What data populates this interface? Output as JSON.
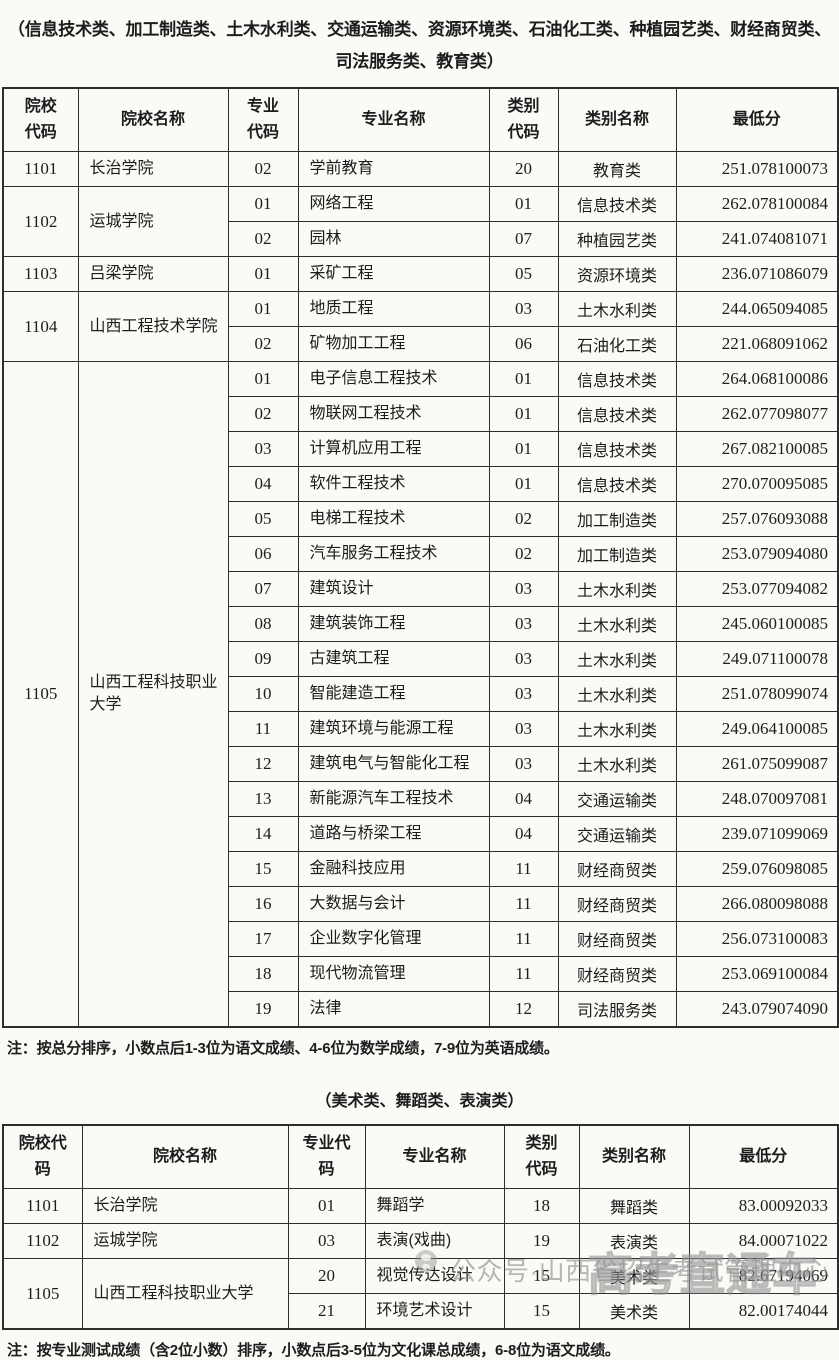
{
  "colors": {
    "page_background": "#fbfaf7",
    "text": "#1c1c1c",
    "table_border": "#2e2e2e",
    "watermark_gray": "#8d8d8d"
  },
  "section1": {
    "title_line1": "（信息技术类、加工制造类、土木水利类、交通运输类、资源环境类、石油化工类、种植园艺类、财经商贸类、",
    "title_line2": "司法服务类、教育类）",
    "table": {
      "headers": [
        "院校代码",
        "院校名称",
        "专业代码",
        "专业名称",
        "类别代码",
        "类别名称",
        "最低分"
      ],
      "groups": [
        {
          "code": "1101",
          "name": "长治学院",
          "majors": [
            {
              "major_code": "02",
              "major_name": "学前教育",
              "category_code": "20",
              "category_name": "教育类",
              "min_score": "251.078100073"
            }
          ]
        },
        {
          "code": "1102",
          "name": "运城学院",
          "majors": [
            {
              "major_code": "01",
              "major_name": "网络工程",
              "category_code": "01",
              "category_name": "信息技术类",
              "min_score": "262.078100084"
            },
            {
              "major_code": "02",
              "major_name": "园林",
              "category_code": "07",
              "category_name": "种植园艺类",
              "min_score": "241.074081071"
            }
          ]
        },
        {
          "code": "1103",
          "name": "吕梁学院",
          "majors": [
            {
              "major_code": "01",
              "major_name": "采矿工程",
              "category_code": "05",
              "category_name": "资源环境类",
              "min_score": "236.071086079"
            }
          ]
        },
        {
          "code": "1104",
          "name": "山西工程技术学院",
          "majors": [
            {
              "major_code": "01",
              "major_name": "地质工程",
              "category_code": "03",
              "category_name": "土木水利类",
              "min_score": "244.065094085"
            },
            {
              "major_code": "02",
              "major_name": "矿物加工工程",
              "category_code": "06",
              "category_name": "石油化工类",
              "min_score": "221.068091062"
            }
          ]
        },
        {
          "code": "1105",
          "name": "山西工程科技职业大学",
          "majors": [
            {
              "major_code": "01",
              "major_name": "电子信息工程技术",
              "category_code": "01",
              "category_name": "信息技术类",
              "min_score": "264.068100086"
            },
            {
              "major_code": "02",
              "major_name": "物联网工程技术",
              "category_code": "01",
              "category_name": "信息技术类",
              "min_score": "262.077098077"
            },
            {
              "major_code": "03",
              "major_name": "计算机应用工程",
              "category_code": "01",
              "category_name": "信息技术类",
              "min_score": "267.082100085"
            },
            {
              "major_code": "04",
              "major_name": "软件工程技术",
              "category_code": "01",
              "category_name": "信息技术类",
              "min_score": "270.070095085"
            },
            {
              "major_code": "05",
              "major_name": "电梯工程技术",
              "category_code": "02",
              "category_name": "加工制造类",
              "min_score": "257.076093088"
            },
            {
              "major_code": "06",
              "major_name": "汽车服务工程技术",
              "category_code": "02",
              "category_name": "加工制造类",
              "min_score": "253.079094080"
            },
            {
              "major_code": "07",
              "major_name": "建筑设计",
              "category_code": "03",
              "category_name": "土木水利类",
              "min_score": "253.077094082"
            },
            {
              "major_code": "08",
              "major_name": "建筑装饰工程",
              "category_code": "03",
              "category_name": "土木水利类",
              "min_score": "245.060100085"
            },
            {
              "major_code": "09",
              "major_name": "古建筑工程",
              "category_code": "03",
              "category_name": "土木水利类",
              "min_score": "249.071100078"
            },
            {
              "major_code": "10",
              "major_name": "智能建造工程",
              "category_code": "03",
              "category_name": "土木水利类",
              "min_score": "251.078099074"
            },
            {
              "major_code": "11",
              "major_name": "建筑环境与能源工程",
              "category_code": "03",
              "category_name": "土木水利类",
              "min_score": "249.064100085"
            },
            {
              "major_code": "12",
              "major_name": "建筑电气与智能化工程",
              "category_code": "03",
              "category_name": "土木水利类",
              "min_score": "261.075099087"
            },
            {
              "major_code": "13",
              "major_name": "新能源汽车工程技术",
              "category_code": "04",
              "category_name": "交通运输类",
              "min_score": "248.070097081"
            },
            {
              "major_code": "14",
              "major_name": "道路与桥梁工程",
              "category_code": "04",
              "category_name": "交通运输类",
              "min_score": "239.071099069"
            },
            {
              "major_code": "15",
              "major_name": "金融科技应用",
              "category_code": "11",
              "category_name": "财经商贸类",
              "min_score": "259.076098085"
            },
            {
              "major_code": "16",
              "major_name": "大数据与会计",
              "category_code": "11",
              "category_name": "财经商贸类",
              "min_score": "266.080098088"
            },
            {
              "major_code": "17",
              "major_name": "企业数字化管理",
              "category_code": "11",
              "category_name": "财经商贸类",
              "min_score": "256.073100083"
            },
            {
              "major_code": "18",
              "major_name": "现代物流管理",
              "category_code": "11",
              "category_name": "财经商贸类",
              "min_score": "253.069100084"
            },
            {
              "major_code": "19",
              "major_name": "法律",
              "category_code": "12",
              "category_name": "司法服务类",
              "min_score": "243.079074090"
            }
          ]
        }
      ]
    },
    "note": "注：按总分排序，小数点后1-3位为语文成绩、4-6位为数学成绩，7-9位为英语成绩。"
  },
  "section2": {
    "title": "（美术类、舞蹈类、表演类）",
    "table": {
      "headers": [
        "院校代码",
        "院校名称",
        "专业代码",
        "专业名称",
        "类别代码",
        "类别名称",
        "最低分"
      ],
      "groups": [
        {
          "code": "1101",
          "name": "长治学院",
          "majors": [
            {
              "major_code": "01",
              "major_name": "舞蹈学",
              "category_code": "18",
              "category_name": "舞蹈类",
              "min_score": "83.00092033"
            }
          ]
        },
        {
          "code": "1102",
          "name": "运城学院",
          "majors": [
            {
              "major_code": "03",
              "major_name": "表演(戏曲)",
              "category_code": "19",
              "category_name": "表演类",
              "min_score": "84.00071022"
            }
          ]
        },
        {
          "code": "1105",
          "name": "山西工程科技职业大学",
          "majors": [
            {
              "major_code": "20",
              "major_name": "视觉传达设计",
              "category_code": "15",
              "category_name": "美术类",
              "min_score": "82.67194069"
            },
            {
              "major_code": "21",
              "major_name": "环境艺术设计",
              "category_code": "15",
              "category_name": "美术类",
              "min_score": "82.00174044"
            }
          ]
        }
      ]
    },
    "note": "注：按专业测试成绩（含2位小数）排序，小数点后3-5位为文化课总成绩，6-8位为语文成绩。"
  },
  "watermark": {
    "icon": "wechat-official-account-icon",
    "account_text": "公众号·山西省招生考试管理中心",
    "overlay_text": "高考直通车"
  }
}
